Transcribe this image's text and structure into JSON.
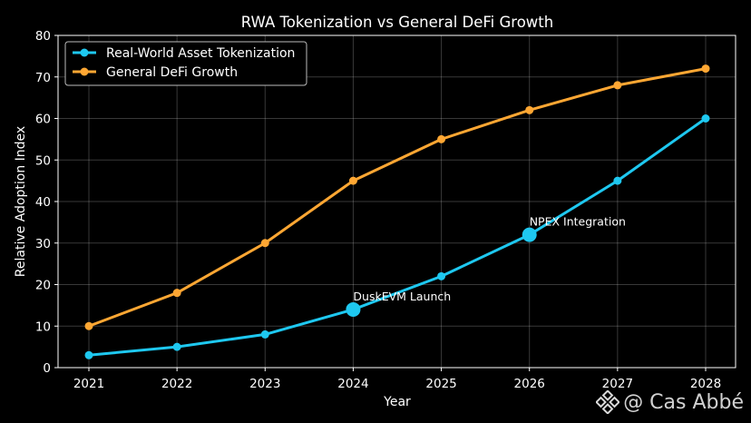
{
  "chart_data": {
    "type": "line",
    "title": "RWA Tokenization vs General DeFi Growth",
    "xlabel": "Year",
    "ylabel": "Relative Adoption Index",
    "categories": [
      "2021",
      "2022",
      "2023",
      "2024",
      "2025",
      "2026",
      "2027",
      "2028"
    ],
    "ylim": [
      0,
      80
    ],
    "yticks": [
      "0",
      "10",
      "20",
      "30",
      "40",
      "50",
      "60",
      "70",
      "80"
    ],
    "grid": true,
    "legend_position": "top-left",
    "series": [
      {
        "name": "Real-World Asset Tokenization",
        "color": "#1ec8f0",
        "values": [
          3,
          5,
          8,
          14,
          22,
          32,
          45,
          60
        ]
      },
      {
        "name": "General DeFi Growth",
        "color": "#ffa733",
        "values": [
          10,
          18,
          30,
          45,
          55,
          62,
          68,
          72
        ]
      }
    ],
    "annotations": [
      {
        "text": "DuskEVM Launch",
        "category": "2024",
        "value": 14,
        "series": 0
      },
      {
        "text": "NPEX Integration",
        "category": "2026",
        "value": 32,
        "series": 0
      }
    ]
  },
  "watermark": {
    "text": "@ Cas Abbé",
    "icon": "binance-diamond-icon"
  }
}
